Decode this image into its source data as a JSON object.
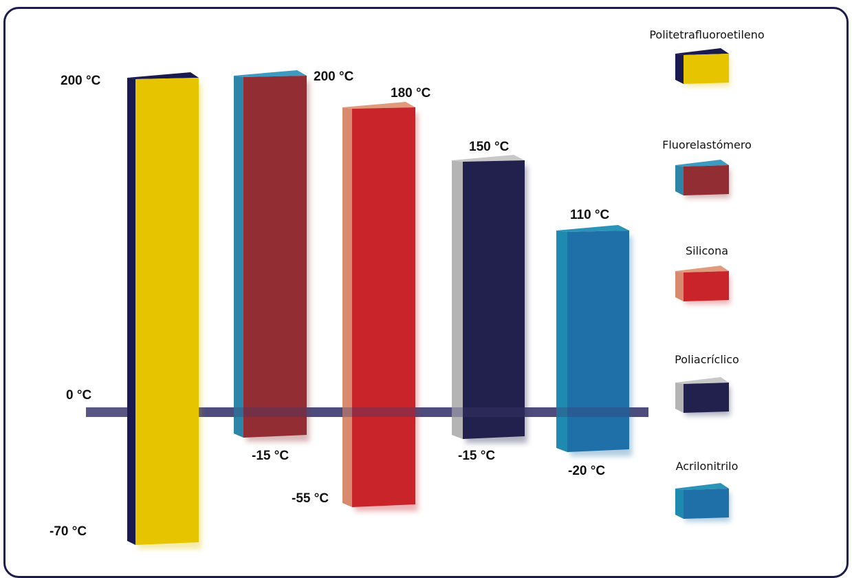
{
  "chart_data": {
    "type": "bar",
    "variant": "floating-range-3d",
    "unit": "°C",
    "zero_label": "0 °C",
    "series": [
      {
        "name": "Politetrafluoroetileno",
        "min": -70,
        "max": 200,
        "min_label": "-70 °C",
        "max_label": "200 °C",
        "front": "#e6c400",
        "side": "#1a1a4e",
        "top": "#1a1a4e"
      },
      {
        "name": "Fluorelastómero",
        "min": -15,
        "max": 200,
        "min_label": "-15 °C",
        "max_label": "200 °C",
        "front": "#912d33",
        "side": "#2d86a8",
        "top": "#3d9ac0"
      },
      {
        "name": "Silicona",
        "min": -55,
        "max": 180,
        "min_label": "-55 °C",
        "max_label": "180 °C",
        "front": "#c8242a",
        "side": "#d98a6e",
        "top": "#e29a7c"
      },
      {
        "name": "Poliacríclico",
        "min": -15,
        "max": 150,
        "min_label": "-15 °C",
        "max_label": "150 °C",
        "front": "#22214d",
        "side": "#b4b4b4",
        "top": "#c8c8c8"
      },
      {
        "name": "Acrilonitrilo",
        "min": -20,
        "max": 110,
        "min_label": "-20 °C",
        "max_label": "110 °C",
        "front": "#1f6fa9",
        "side": "#1f8ab0",
        "top": "#2a94b8"
      }
    ],
    "zero_line_color": "#3b3a6e",
    "legend_position": "right"
  }
}
